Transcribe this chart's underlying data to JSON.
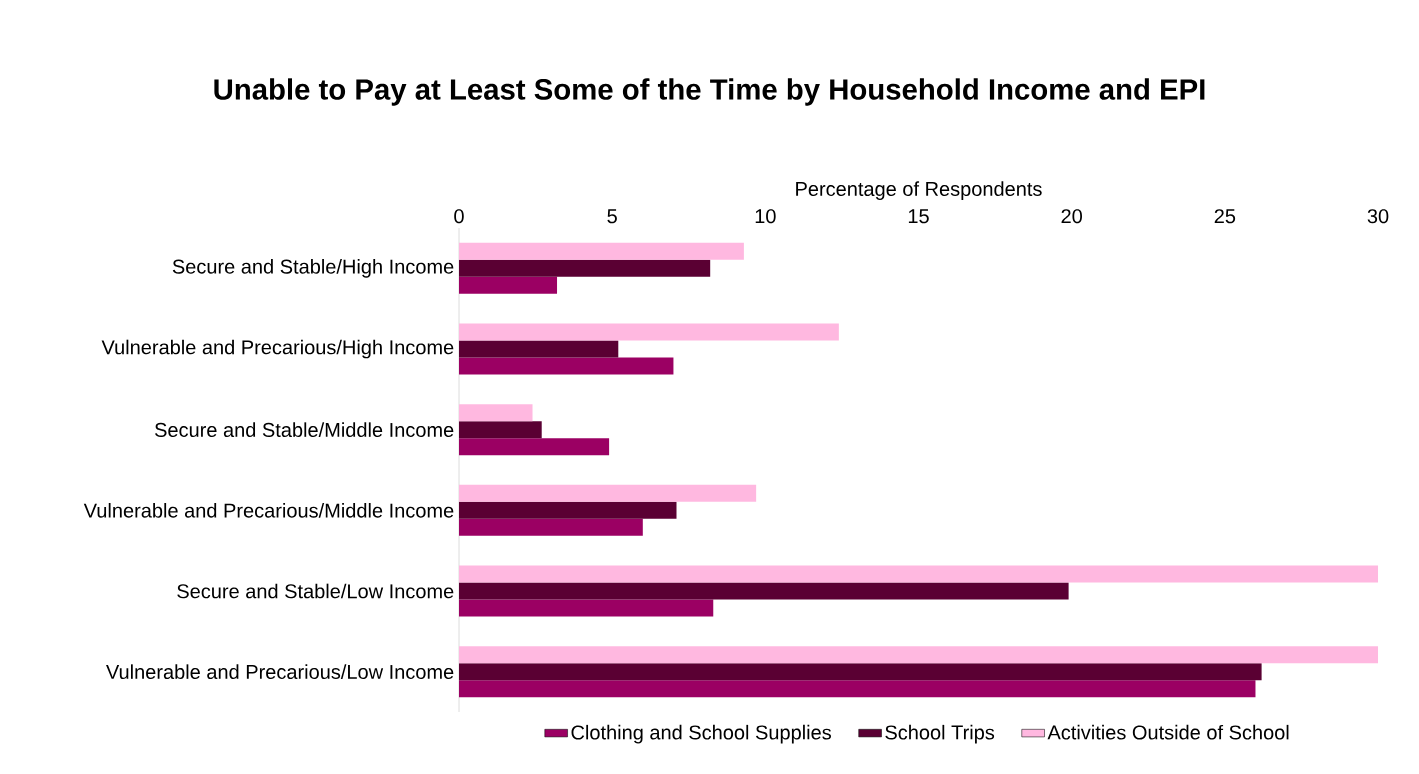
{
  "chart_data": {
    "type": "bar",
    "orientation": "horizontal",
    "title": "Unable to Pay at Least Some of the Time by Household Income and EPI",
    "xlabel": "Percentage of Respondents",
    "categories": [
      "Secure and Stable/High Income",
      "Vulnerable and Precarious/High Income",
      "Secure and Stable/Middle Income",
      "Vulnerable and Precarious/Middle Income",
      "Secure and Stable/Low Income",
      "Vulnerable and Precarious/Low Income"
    ],
    "series": [
      {
        "name": "Clothing and School Supplies",
        "color": "#9b0063",
        "values": [
          3.2,
          7.0,
          4.9,
          6.0,
          8.3,
          26.0
        ]
      },
      {
        "name": "School Trips",
        "color": "#5a0033",
        "values": [
          8.2,
          5.2,
          2.7,
          7.1,
          19.9,
          26.2
        ]
      },
      {
        "name": "Activities Outside of School",
        "color": "#ffb8e0",
        "values": [
          9.3,
          12.4,
          2.4,
          9.7,
          30,
          30
        ]
      }
    ],
    "xlim": [
      0,
      30
    ],
    "xticks": [
      0,
      5,
      10,
      15,
      20,
      25,
      30
    ],
    "legend": "bottom"
  }
}
